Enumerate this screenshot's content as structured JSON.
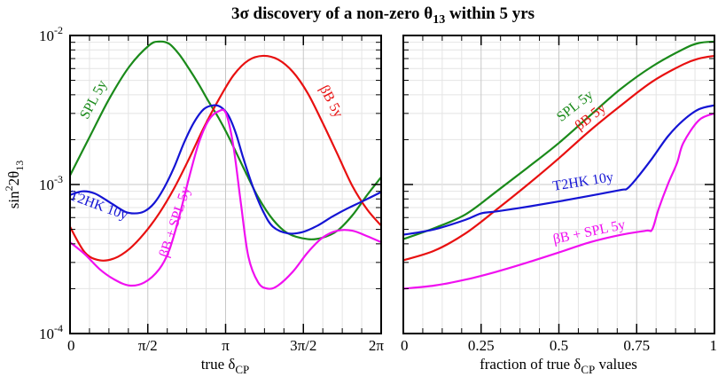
{
  "figure": {
    "title_main": "3σ discovery of a non-zero θ",
    "title_sub": "13",
    "title_tail": " within 5 yrs"
  },
  "chart_data": [
    {
      "type": "line",
      "panel": "left",
      "xlabel_main": "true δ",
      "xlabel_sub": "CP",
      "ylabel_pre": "sin",
      "ylabel_sup": "2",
      "ylabel_mid": "2θ",
      "ylabel_sub": "13",
      "yscale": "log",
      "ylim": [
        0.0001,
        0.01
      ],
      "xlim": [
        0,
        6.2832
      ],
      "grid": true,
      "xticks": [
        {
          "value": 0,
          "label": "0"
        },
        {
          "value": 1.5708,
          "label": "π/2"
        },
        {
          "value": 3.1416,
          "label": "π"
        },
        {
          "value": 4.7124,
          "label": "3π/2"
        },
        {
          "value": 6.2832,
          "label": "2π"
        }
      ],
      "yticks": [
        {
          "value": 0.0001,
          "base": "10",
          "exp": "-4"
        },
        {
          "value": 0.001,
          "base": "10",
          "exp": "-3"
        },
        {
          "value": 0.01,
          "base": "10",
          "exp": "-2"
        }
      ],
      "series": [
        {
          "name": "SPL 5y",
          "color": "#1a8a1a",
          "label_pos": {
            "x": 0.55,
            "y": 0.0036
          },
          "x": [
            0,
            0.4,
            0.8,
            1.2,
            1.6,
            1.8,
            2.0,
            2.2,
            2.4,
            2.6,
            2.8,
            3.0,
            3.2,
            3.5,
            3.8,
            4.1,
            4.4,
            4.8,
            5.1,
            5.4,
            5.7,
            6.0,
            6.2832
          ],
          "values": [
            0.00115,
            0.0021,
            0.0038,
            0.0062,
            0.0086,
            0.0091,
            0.0088,
            0.0075,
            0.006,
            0.0047,
            0.0036,
            0.0028,
            0.0021,
            0.0013,
            0.00082,
            0.00058,
            0.00047,
            0.00043,
            0.00044,
            0.00049,
            0.00062,
            0.00085,
            0.00112
          ]
        },
        {
          "name": "βB 5y",
          "color": "#e81010",
          "label_pos": {
            "x": 5.2,
            "y": 0.0035
          },
          "x": [
            0,
            0.3,
            0.6,
            0.9,
            1.2,
            1.5,
            1.8,
            2.1,
            2.4,
            2.7,
            3.0,
            3.3,
            3.6,
            3.9,
            4.2,
            4.5,
            4.8,
            5.1,
            5.4,
            5.7,
            6.0,
            6.2832
          ],
          "values": [
            0.00052,
            0.00035,
            0.00031,
            0.00032,
            0.00037,
            0.00047,
            0.00064,
            0.00094,
            0.00148,
            0.0024,
            0.0037,
            0.0054,
            0.0068,
            0.0073,
            0.0069,
            0.0057,
            0.0041,
            0.0026,
            0.0016,
            0.00098,
            0.00068,
            0.00053
          ]
        },
        {
          "name": "T2HK 10y",
          "color": "#1414d4",
          "label_pos": {
            "x": 0.55,
            "y": 0.00068
          },
          "x": [
            0,
            0.25,
            0.5,
            0.8,
            1.1,
            1.3,
            1.5,
            1.7,
            1.9,
            2.1,
            2.3,
            2.5,
            2.7,
            2.9,
            3.05,
            3.2,
            3.35,
            3.5,
            3.7,
            3.9,
            4.1,
            4.4,
            4.7,
            5.0,
            5.3,
            5.6,
            5.9,
            6.2832
          ],
          "values": [
            0.00085,
            0.0009,
            0.00087,
            0.00076,
            0.00066,
            0.00064,
            0.00066,
            0.00075,
            0.00095,
            0.0013,
            0.0019,
            0.0026,
            0.0032,
            0.0034,
            0.0033,
            0.0029,
            0.0022,
            0.0015,
            0.00095,
            0.00066,
            0.00052,
            0.00047,
            0.00048,
            0.00053,
            0.00061,
            0.00069,
            0.00077,
            0.00089
          ]
        },
        {
          "name": "βB + SPL 5y",
          "color": "#f010f0",
          "label_pos": {
            "x": 2.2,
            "y": 0.00055
          },
          "x": [
            0,
            0.3,
            0.6,
            0.9,
            1.2,
            1.5,
            1.8,
            2.0,
            2.2,
            2.4,
            2.6,
            2.8,
            3.0,
            3.15,
            3.3,
            3.45,
            3.6,
            3.8,
            4.0,
            4.2,
            4.5,
            4.8,
            5.1,
            5.4,
            5.7,
            6.0,
            6.2832
          ],
          "values": [
            0.00041,
            0.00034,
            0.00027,
            0.00023,
            0.00021,
            0.00022,
            0.00027,
            0.00036,
            0.0006,
            0.0011,
            0.0019,
            0.0027,
            0.0031,
            0.003,
            0.0018,
            0.00075,
            0.00033,
            0.00022,
            0.0002,
            0.00021,
            0.00026,
            0.00035,
            0.00044,
            0.00049,
            0.00049,
            0.00045,
            0.00041
          ]
        }
      ]
    },
    {
      "type": "line",
      "panel": "right",
      "xlabel_main": "fraction of true δ",
      "xlabel_sub": "CP",
      "xlabel_tail": " values",
      "yscale": "log",
      "ylim": [
        0.0001,
        0.01
      ],
      "xlim": [
        0,
        1
      ],
      "grid": true,
      "xticks": [
        {
          "value": 0,
          "label": "0"
        },
        {
          "value": 0.25,
          "label": "0.25"
        },
        {
          "value": 0.5,
          "label": "0.5"
        },
        {
          "value": 0.75,
          "label": "0.75"
        },
        {
          "value": 1,
          "label": "1"
        }
      ],
      "series": [
        {
          "name": "SPL 5y",
          "color": "#1a8a1a",
          "label_pos": {
            "x": 0.56,
            "y": 0.0032
          },
          "label_rotate": -38,
          "x": [
            0,
            0.1,
            0.2,
            0.3,
            0.4,
            0.5,
            0.6,
            0.7,
            0.8,
            0.9,
            0.95,
            1.0
          ],
          "values": [
            0.00043,
            0.00051,
            0.00063,
            0.0009,
            0.0013,
            0.0019,
            0.0029,
            0.0044,
            0.0062,
            0.0081,
            0.0089,
            0.0091
          ]
        },
        {
          "name": "βB 5y",
          "color": "#e81010",
          "label_pos": {
            "x": 0.61,
            "y": 0.0027
          },
          "label_rotate": -38,
          "x": [
            0,
            0.1,
            0.2,
            0.3,
            0.4,
            0.5,
            0.6,
            0.7,
            0.8,
            0.9,
            0.95,
            1.0
          ],
          "values": [
            0.00031,
            0.00036,
            0.00047,
            0.00068,
            0.001,
            0.0015,
            0.0023,
            0.0034,
            0.0049,
            0.0064,
            0.007,
            0.0073
          ]
        },
        {
          "name": "T2HK 10y",
          "color": "#1414d4",
          "label_pos": {
            "x": 0.58,
            "y": 0.00098
          },
          "label_rotate": -9,
          "x": [
            0,
            0.1,
            0.2,
            0.25,
            0.3,
            0.4,
            0.5,
            0.6,
            0.7,
            0.72,
            0.75,
            0.8,
            0.85,
            0.9,
            0.95,
            1.0
          ],
          "values": [
            0.00046,
            0.0005,
            0.00058,
            0.00064,
            0.00066,
            0.00071,
            0.00077,
            0.00084,
            0.00092,
            0.00094,
            0.0011,
            0.0015,
            0.0021,
            0.0027,
            0.0032,
            0.0034
          ]
        },
        {
          "name": "βB + SPL 5y",
          "color": "#f010f0",
          "label_pos": {
            "x": 0.6,
            "y": 0.00045
          },
          "label_rotate": -12,
          "x": [
            0,
            0.1,
            0.2,
            0.3,
            0.4,
            0.5,
            0.6,
            0.7,
            0.78,
            0.8,
            0.82,
            0.85,
            0.88,
            0.9,
            0.95,
            1.0
          ],
          "values": [
            0.0002,
            0.00021,
            0.00023,
            0.00026,
            0.0003,
            0.00035,
            0.00041,
            0.00046,
            0.00049,
            0.0005,
            0.00068,
            0.001,
            0.0014,
            0.0019,
            0.0027,
            0.003
          ]
        }
      ]
    }
  ]
}
